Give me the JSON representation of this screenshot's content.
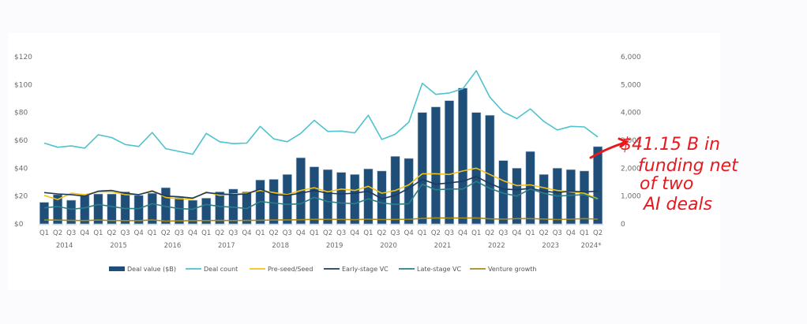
{
  "chart_data": {
    "type": "bar",
    "title": "",
    "xlabel": "",
    "ylabel": "",
    "y_left": {
      "ylim": [
        0,
        120
      ],
      "ticks": [
        "$0",
        "$20",
        "$40",
        "$60",
        "$80",
        "$100",
        "$120"
      ],
      "tick_values": [
        0,
        20,
        40,
        60,
        80,
        100,
        120
      ]
    },
    "y_right": {
      "ylim": [
        0,
        6000
      ],
      "ticks": [
        "0",
        "1,000",
        "2,000",
        "3,000",
        "4,000",
        "5,000",
        "6,000"
      ],
      "tick_values": [
        0,
        1000,
        2000,
        3000,
        4000,
        5000,
        6000
      ]
    },
    "grid": false,
    "legend_position": "bottom",
    "quarters": [
      "Q1",
      "Q2",
      "Q3",
      "Q4",
      "Q1",
      "Q2",
      "Q3",
      "Q4",
      "Q1",
      "Q2",
      "Q3",
      "Q4",
      "Q1",
      "Q2",
      "Q3",
      "Q4",
      "Q1",
      "Q2",
      "Q3",
      "Q4",
      "Q1",
      "Q2",
      "Q3",
      "Q4",
      "Q1",
      "Q2",
      "Q3",
      "Q4",
      "Q1",
      "Q2",
      "Q3",
      "Q4",
      "Q1",
      "Q2",
      "Q3",
      "Q4",
      "Q1",
      "Q2",
      "Q3",
      "Q4",
      "Q1",
      "Q2"
    ],
    "years": [
      "2014",
      "2015",
      "2016",
      "2017",
      "2018",
      "2019",
      "2020",
      "2021",
      "2022",
      "2023",
      "2024*"
    ],
    "series": [
      {
        "name": "Deal value ($B)",
        "type": "bar",
        "axis": "left",
        "color": "#1f4e79",
        "values": [
          15.5,
          21,
          17,
          20.5,
          21.5,
          21.5,
          23,
          20.5,
          22,
          26,
          19,
          17,
          18.5,
          23,
          25,
          23,
          31.5,
          32,
          35.5,
          47.5,
          41,
          39,
          37,
          35.5,
          39.5,
          38,
          48.5,
          47,
          80,
          84,
          88.5,
          97.5,
          80,
          78,
          45.5,
          40,
          52,
          35.5,
          40,
          39,
          38,
          55.5
        ]
      },
      {
        "name": "Deal count",
        "type": "line",
        "axis": "right",
        "color": "#4dc3cf",
        "values": [
          2900,
          2750,
          2800,
          2720,
          3200,
          3100,
          2850,
          2780,
          3280,
          2700,
          2600,
          2500,
          3250,
          2950,
          2880,
          2900,
          3500,
          3050,
          2950,
          3250,
          3720,
          3320,
          3330,
          3270,
          3900,
          3030,
          3220,
          3650,
          5050,
          4650,
          4700,
          4850,
          5500,
          4550,
          4020,
          3780,
          4130,
          3680,
          3370,
          3500,
          3480,
          3120
        ]
      },
      {
        "name": "Pre-seed/Seed",
        "type": "line",
        "axis": "left",
        "color": "#f2c318",
        "values": [
          20.5,
          17.5,
          22,
          21,
          23,
          23,
          21,
          21,
          24,
          19,
          18,
          18,
          23,
          20.5,
          21.5,
          22,
          24,
          22.5,
          21,
          24,
          26,
          23,
          25,
          24,
          27,
          22,
          24,
          28,
          36,
          36,
          35.5,
          38,
          40,
          35.5,
          31,
          27.5,
          28,
          26,
          24,
          23,
          22,
          18
        ]
      },
      {
        "name": "Early-stage VC",
        "type": "line",
        "axis": "left",
        "color": "#1b3a5c",
        "values": [
          22.5,
          21.5,
          21,
          20,
          23.5,
          24,
          22,
          21,
          23.5,
          20,
          19.5,
          18.5,
          22.5,
          21.5,
          21,
          21.5,
          25,
          21,
          20.5,
          22,
          24,
          22,
          21.5,
          22,
          23.5,
          18,
          20.5,
          25.5,
          32,
          28.5,
          29.5,
          30.5,
          34,
          29,
          25,
          24.5,
          25.5,
          23.5,
          22.5,
          23.5,
          23,
          23.5
        ]
      },
      {
        "name": "Late-stage VC",
        "type": "line",
        "axis": "left",
        "color": "#2a7f86",
        "values": [
          11.5,
          12.5,
          10.5,
          11.5,
          14,
          12.5,
          11,
          11,
          14.5,
          12.5,
          11,
          10.5,
          14,
          12.5,
          12,
          11,
          16,
          15,
          14,
          14.5,
          19,
          16,
          15,
          14.5,
          18,
          15,
          14,
          14.5,
          28.5,
          24.5,
          25,
          25,
          30.5,
          25.5,
          22,
          20,
          25,
          22,
          20,
          20.5,
          21,
          17.5
        ]
      },
      {
        "name": "Venture growth",
        "type": "line",
        "axis": "left",
        "color": "#a68a1c",
        "values": [
          2.8,
          2.7,
          2.5,
          2.4,
          2.8,
          2.4,
          2.4,
          2.3,
          2.9,
          2.0,
          2.2,
          2.3,
          2.4,
          2.5,
          2.4,
          2.5,
          2.6,
          2.8,
          2.9,
          3.0,
          3.3,
          3.2,
          3.2,
          3.0,
          3.4,
          3.1,
          3.2,
          3.3,
          3.9,
          4.3,
          4.2,
          4.2,
          4.3,
          3.6,
          3.4,
          3.8,
          3.8,
          3.5,
          3.1,
          3.4,
          3.8,
          3.4
        ]
      }
    ],
    "annotations": [
      {
        "text_lines": [
          "$41.15 B in",
          "funding net",
          "of two",
          "AI deals"
        ],
        "color": "#e8191e",
        "style": "handwritten",
        "points_to": "Q2 2024* bar"
      }
    ]
  }
}
